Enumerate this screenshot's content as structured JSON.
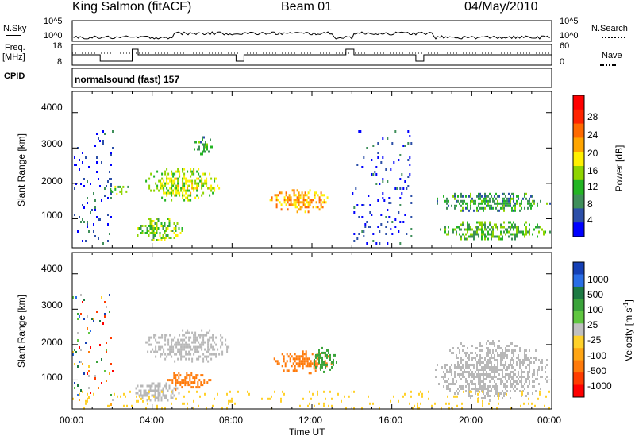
{
  "header": {
    "station": "King Salmon (fitACF)",
    "beam": "Beam 01",
    "date": "04/May/2010"
  },
  "strip": {
    "nsky_label": "N.Sky",
    "nsky_ticks": [
      "10^5",
      "10^0"
    ],
    "nsearch_label": "N.Search",
    "freq_label": "Freq.",
    "freq_unit": "[MHz]",
    "freq_ticks": [
      "18",
      "8"
    ],
    "nave_label": "Nave",
    "nave_ticks": [
      "60",
      "0"
    ],
    "cpid_label": "CPID",
    "cpid_text": "normalsound (fast) 157"
  },
  "colors": {
    "power": [
      "#0000ff",
      "#2c4fa8",
      "#3f8f5a",
      "#23b523",
      "#8fd400",
      "#fff000",
      "#ffa500",
      "#ff6a00",
      "#ff2400",
      "#ff0000"
    ],
    "velocity_pos": [
      "#1540b5",
      "#2a6ee6",
      "#1d7a43",
      "#3aa33a",
      "#60c640"
    ],
    "velocity_neutral": "#c0c0c0",
    "velocity_neg": [
      "#ffd12a",
      "#ffa514",
      "#ff7a0a",
      "#ff3c00",
      "#ff0000"
    ],
    "ground": "#b8b8b8"
  },
  "chart_data": [
    {
      "type": "heatmap",
      "panel": "power",
      "ylabel": "Slant Range [km]",
      "xlabel": "",
      "xticks": [
        "00:00",
        "04:00",
        "08:00",
        "12:00",
        "16:00",
        "20:00",
        "00:00"
      ],
      "xlim_hours": [
        0,
        24
      ],
      "yticks": [
        1000,
        2000,
        3000,
        4000
      ],
      "ylim_km": [
        180,
        4600
      ],
      "colorbar": {
        "label": "Power [dB]",
        "ticks": [
          "4",
          "8",
          "12",
          "16",
          "20",
          "24",
          "28"
        ],
        "range": [
          0,
          30
        ]
      },
      "echo_regions": [
        {
          "t": [
            0.0,
            2.0
          ],
          "r": [
            300,
            3500
          ],
          "level": 4,
          "sparse": true
        },
        {
          "t": [
            1.8,
            3.0
          ],
          "r": [
            1700,
            2000
          ],
          "level": 12
        },
        {
          "t": [
            3.0,
            5.5
          ],
          "r": [
            400,
            1100
          ],
          "level": 12
        },
        {
          "t": [
            3.5,
            7.5
          ],
          "r": [
            1500,
            2500
          ],
          "level": 14
        },
        {
          "t": [
            6.0,
            7.0
          ],
          "r": [
            2800,
            3400
          ],
          "level": 8
        },
        {
          "t": [
            9.8,
            13.0
          ],
          "r": [
            1200,
            1900
          ],
          "level": 20
        },
        {
          "t": [
            14.0,
            17.0
          ],
          "r": [
            300,
            3500
          ],
          "level": 4,
          "sparse": true
        },
        {
          "t": [
            18.0,
            24.0
          ],
          "r": [
            1200,
            1800
          ],
          "level": 8
        },
        {
          "t": [
            18.0,
            24.0
          ],
          "r": [
            400,
            1000
          ],
          "level": 10
        }
      ]
    },
    {
      "type": "heatmap",
      "panel": "velocity",
      "ylabel": "Slant Range [km]",
      "xlabel": "Time UT",
      "xticks": [
        "00:00",
        "04:00",
        "08:00",
        "12:00",
        "16:00",
        "20:00",
        "00:00"
      ],
      "xlim_hours": [
        0,
        24
      ],
      "yticks": [
        1000,
        2000,
        3000,
        4000
      ],
      "ylim_km": [
        180,
        4600
      ],
      "colorbar": {
        "label": "Velocity [m s",
        "label_sup": "-1",
        "label_end": "]",
        "ticks": [
          "1000",
          "500",
          "100",
          "25",
          "-25",
          "-100",
          "-500",
          "-1000"
        ]
      },
      "echo_regions": [
        {
          "t": [
            0.0,
            2.0
          ],
          "r": [
            300,
            3500
          ],
          "v": "mixed",
          "sparse": true
        },
        {
          "t": [
            3.5,
            8.0
          ],
          "r": [
            1500,
            2500
          ],
          "v": "ground"
        },
        {
          "t": [
            3.0,
            5.5
          ],
          "r": [
            400,
            1000
          ],
          "v": "ground"
        },
        {
          "t": [
            4.5,
            7.0
          ],
          "r": [
            700,
            1300
          ],
          "v": -300
        },
        {
          "t": [
            10.0,
            13.0
          ],
          "r": [
            1200,
            1900
          ],
          "v": -300
        },
        {
          "t": [
            12.0,
            13.3
          ],
          "r": [
            1200,
            2000
          ],
          "v": 150
        },
        {
          "t": [
            18.0,
            24.0
          ],
          "r": [
            400,
            2200
          ],
          "v": "ground"
        },
        {
          "t": [
            0.0,
            24.0
          ],
          "r": [
            180,
            700
          ],
          "v": -60,
          "sparse": true
        }
      ]
    }
  ]
}
